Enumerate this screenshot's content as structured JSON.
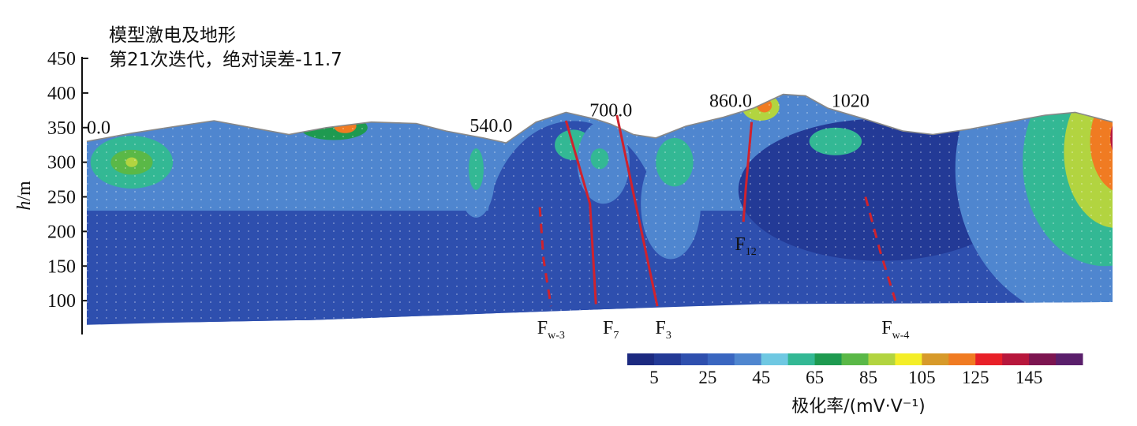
{
  "chart_data": {
    "type": "heatmap",
    "title_line1": "模型激电及地形",
    "title_line2": "第21次迭代，绝对误差-11.7",
    "ylabel": {
      "italic": "h",
      "rest": "/m"
    },
    "ylim": [
      50,
      450
    ],
    "y_ticks": [
      450,
      400,
      350,
      300,
      250,
      200,
      150,
      100
    ],
    "station_labels": [
      {
        "text": "0.0",
        "x": 0
      },
      {
        "text": "540.0",
        "x": 540
      },
      {
        "text": "700.0",
        "x": 700
      },
      {
        "text": "860.0",
        "x": 860
      },
      {
        "text": "1020",
        "x": 1020
      }
    ],
    "topography": [
      [
        0,
        330
      ],
      [
        60,
        342
      ],
      [
        120,
        352
      ],
      [
        170,
        360
      ],
      [
        220,
        350
      ],
      [
        270,
        340
      ],
      [
        320,
        350
      ],
      [
        380,
        358
      ],
      [
        440,
        356
      ],
      [
        480,
        345
      ],
      [
        530,
        335
      ],
      [
        560,
        328
      ],
      [
        600,
        358
      ],
      [
        640,
        372
      ],
      [
        680,
        362
      ],
      [
        700,
        355
      ],
      [
        730,
        340
      ],
      [
        760,
        335
      ],
      [
        800,
        352
      ],
      [
        850,
        365
      ],
      [
        890,
        378
      ],
      [
        930,
        398
      ],
      [
        960,
        396
      ],
      [
        990,
        378
      ],
      [
        1040,
        362
      ],
      [
        1090,
        345
      ],
      [
        1130,
        340
      ],
      [
        1180,
        348
      ],
      [
        1230,
        358
      ],
      [
        1280,
        368
      ],
      [
        1320,
        372
      ],
      [
        1370,
        358
      ]
    ],
    "bottom": [
      [
        0,
        65
      ],
      [
        100,
        68
      ],
      [
        300,
        72
      ],
      [
        500,
        80
      ],
      [
        700,
        88
      ],
      [
        900,
        95
      ],
      [
        1100,
        96
      ],
      [
        1370,
        98
      ]
    ],
    "anomalies": [
      {
        "cx": 60,
        "cy": 300,
        "rx": 110,
        "ry": 70,
        "level": 4
      },
      {
        "cx": 60,
        "cy": 300,
        "rx": 55,
        "ry": 38,
        "level": 6
      },
      {
        "cx": 60,
        "cy": 300,
        "rx": 28,
        "ry": 18,
        "level": 8
      },
      {
        "cx": 60,
        "cy": 300,
        "rx": 8,
        "ry": 7,
        "level": 9
      },
      {
        "cx": 330,
        "cy": 350,
        "rx": 45,
        "ry": 18,
        "level": 7
      },
      {
        "cx": 345,
        "cy": 352,
        "rx": 15,
        "ry": 10,
        "level": 12
      },
      {
        "cx": 520,
        "cy": 280,
        "rx": 25,
        "ry": 60,
        "level": 4
      },
      {
        "cx": 520,
        "cy": 290,
        "rx": 10,
        "ry": 30,
        "level": 6
      },
      {
        "cx": 650,
        "cy": 325,
        "rx": 25,
        "ry": 22,
        "level": 6
      },
      {
        "cx": 690,
        "cy": 300,
        "rx": 35,
        "ry": 60,
        "level": 4
      },
      {
        "cx": 685,
        "cy": 305,
        "rx": 12,
        "ry": 15,
        "level": 6
      },
      {
        "cx": 780,
        "cy": 240,
        "rx": 40,
        "ry": 80,
        "level": 4
      },
      {
        "cx": 785,
        "cy": 300,
        "rx": 25,
        "ry": 35,
        "level": 6
      },
      {
        "cx": 900,
        "cy": 380,
        "rx": 25,
        "ry": 20,
        "level": 9
      },
      {
        "cx": 905,
        "cy": 382,
        "rx": 10,
        "ry": 10,
        "level": 12
      },
      {
        "cx": 1000,
        "cy": 330,
        "rx": 35,
        "ry": 20,
        "level": 6
      },
      {
        "cx": 1340,
        "cy": 290,
        "rx": 180,
        "ry": 220,
        "level": 4
      },
      {
        "cx": 1360,
        "cy": 300,
        "rx": 110,
        "ry": 150,
        "level": 6
      },
      {
        "cx": 1375,
        "cy": 315,
        "rx": 70,
        "ry": 110,
        "level": 9
      },
      {
        "cx": 1385,
        "cy": 330,
        "rx": 45,
        "ry": 75,
        "level": 12
      },
      {
        "cx": 1395,
        "cy": 335,
        "rx": 28,
        "ry": 40,
        "level": 14
      }
    ],
    "faults_solid": [
      {
        "points": [
          [
            640,
            360
          ],
          [
            672,
            240
          ],
          [
            680,
            95
          ]
        ]
      },
      {
        "points": [
          [
            708,
            368
          ],
          [
            735,
            230
          ],
          [
            762,
            92
          ]
        ]
      },
      {
        "points": [
          [
            888,
            358
          ],
          [
            880,
            260
          ],
          [
            877,
            214
          ]
        ]
      }
    ],
    "faults_dashed": [
      {
        "points": [
          [
            605,
            235
          ],
          [
            610,
            160
          ],
          [
            620,
            92
          ]
        ]
      },
      {
        "points": [
          [
            1040,
            250
          ],
          [
            1060,
            170
          ],
          [
            1080,
            100
          ]
        ]
      }
    ],
    "fault_labels": [
      {
        "base": "F",
        "sub": "w-3",
        "x": 620
      },
      {
        "base": "F",
        "sub": "7",
        "x": 700
      },
      {
        "base": "F",
        "sub": "3",
        "x": 770
      },
      {
        "base": "F",
        "sub": "12",
        "x": 880
      },
      {
        "base": "F",
        "sub": "w-4",
        "x": 1080
      }
    ],
    "colorbar": {
      "title": "极化率/(mV·V⁻¹)",
      "labels": [
        "5",
        "25",
        "45",
        "65",
        "85",
        "105",
        "125",
        "145"
      ],
      "colors": [
        "#1c2a80",
        "#233a96",
        "#2e4fae",
        "#3a66c0",
        "#4f86cf",
        "#6fc8e2",
        "#33b894",
        "#1e9a50",
        "#5ab847",
        "#b2d440",
        "#f4ee28",
        "#d79a2a",
        "#f07b22",
        "#e82028",
        "#b7173c",
        "#7c1550",
        "#5a1f6b"
      ]
    }
  }
}
